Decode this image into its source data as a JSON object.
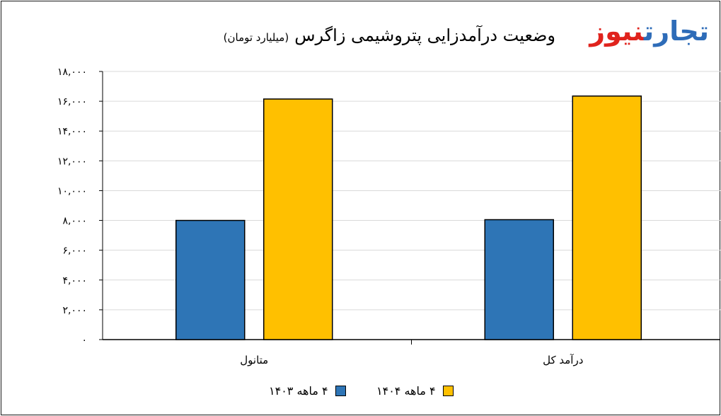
{
  "logo": {
    "part1": "تجارت",
    "part2": "نیوز"
  },
  "title": {
    "main": "وضعیت درآمدزایی پتروشیمی زاگرس",
    "sub": "(میلیارد تومان)"
  },
  "colors": {
    "series1": "#2e75b6",
    "series2": "#ffc000",
    "axis": "#000000",
    "grid": "#d9d9d9"
  },
  "chart_data": {
    "type": "bar",
    "categories": [
      "متانول",
      "درآمد کل"
    ],
    "series": [
      {
        "name": "۴ ماهه ۱۴۰۳",
        "values": [
          8000,
          8050
        ]
      },
      {
        "name": "۴ ماهه ۱۴۰۴",
        "values": [
          16150,
          16350
        ]
      }
    ],
    "ylim": [
      0,
      18000
    ],
    "yticks": [
      0,
      2000,
      4000,
      6000,
      8000,
      10000,
      12000,
      14000,
      16000,
      18000
    ],
    "ytick_labels": [
      "۰",
      "۲,۰۰۰",
      "۴,۰۰۰",
      "۶,۰۰۰",
      "۸,۰۰۰",
      "۱۰,۰۰۰",
      "۱۲,۰۰۰",
      "۱۴,۰۰۰",
      "۱۶,۰۰۰",
      "۱۸,۰۰۰"
    ],
    "grid": true,
    "legend_position": "bottom"
  }
}
